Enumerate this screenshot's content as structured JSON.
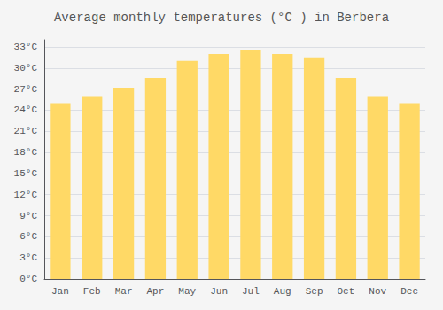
{
  "chart_data": {
    "type": "bar",
    "title": "Average monthly temperatures (°C ) in Berbera",
    "categories": [
      "Jan",
      "Feb",
      "Mar",
      "Apr",
      "May",
      "Jun",
      "Jul",
      "Aug",
      "Sep",
      "Oct",
      "Nov",
      "Dec"
    ],
    "values": [
      25.0,
      26.0,
      27.2,
      28.6,
      31.0,
      32.0,
      32.5,
      32.0,
      31.5,
      28.6,
      26.0,
      25.0
    ],
    "color": "#FFD966",
    "ylim": [
      0,
      34
    ],
    "yticks": [
      {
        "value": 0,
        "label": "0°C"
      },
      {
        "value": 3,
        "label": "3°C"
      },
      {
        "value": 6,
        "label": "6°C"
      },
      {
        "value": 9,
        "label": "9°C"
      },
      {
        "value": 12,
        "label": "12°C"
      },
      {
        "value": 15,
        "label": "15°C"
      },
      {
        "value": 18,
        "label": "18°C"
      },
      {
        "value": 21,
        "label": "21°C"
      },
      {
        "value": 24,
        "label": "24°C"
      },
      {
        "value": 27,
        "label": "27°C"
      },
      {
        "value": 30,
        "label": "30°C"
      },
      {
        "value": 33,
        "label": "33°C"
      }
    ],
    "grid": true
  }
}
